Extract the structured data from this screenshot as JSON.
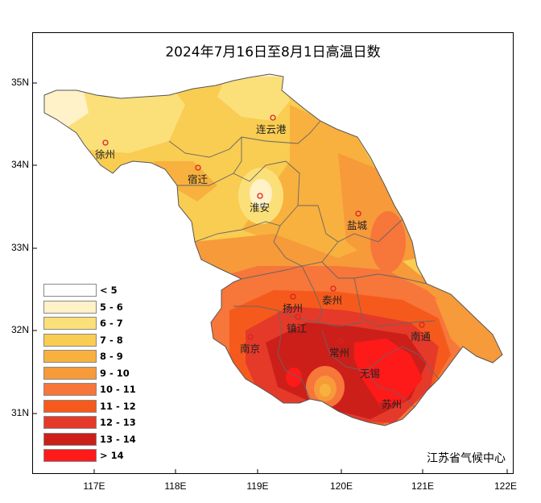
{
  "title": "2024年7月16日至8月1日高温日数",
  "credit": "江苏省气候中心",
  "axes": {
    "lat_ticks": [
      "35N",
      "34N",
      "33N",
      "32N",
      "31N"
    ],
    "lon_ticks": [
      "117E",
      "118E",
      "119E",
      "120E",
      "121E",
      "122E"
    ]
  },
  "legend": [
    {
      "label": "< 5",
      "color": "#ffffff"
    },
    {
      "label": "5 - 6",
      "color": "#fff1c8"
    },
    {
      "label": "6 - 7",
      "color": "#fbe07a"
    },
    {
      "label": "7 - 8",
      "color": "#f9cc52"
    },
    {
      "label": "8 - 9",
      "color": "#f8b13e"
    },
    {
      "label": "9 - 10",
      "color": "#f79a3a"
    },
    {
      "label": "10 - 11",
      "color": "#f7763a"
    },
    {
      "label": "11 - 12",
      "color": "#f55a1c"
    },
    {
      "label": "12 - 13",
      "color": "#e53a2a"
    },
    {
      "label": "13 - 14",
      "color": "#cc1f1a"
    },
    {
      "label": "> 14",
      "color": "#ff1a1a"
    }
  ],
  "cities": [
    {
      "name": "徐州"
    },
    {
      "name": "连云港"
    },
    {
      "name": "宿迁"
    },
    {
      "name": "淮安"
    },
    {
      "name": "盐城"
    },
    {
      "name": "扬州"
    },
    {
      "name": "泰州"
    },
    {
      "name": "镇江"
    },
    {
      "name": "南京"
    },
    {
      "name": "常州"
    },
    {
      "name": "南通"
    },
    {
      "name": "无锡"
    },
    {
      "name": "苏州"
    }
  ]
}
